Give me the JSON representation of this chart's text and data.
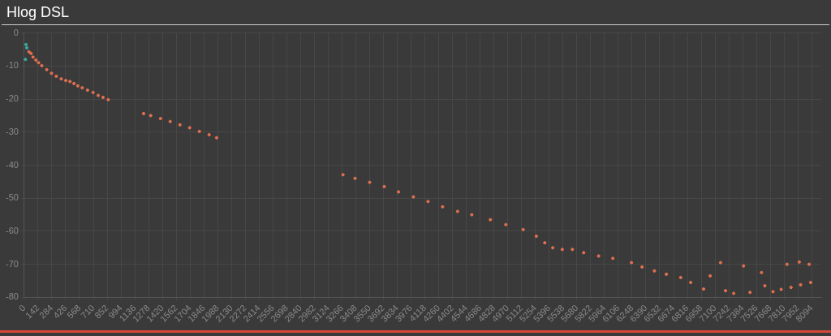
{
  "chart_data": {
    "type": "scatter",
    "title": "Hlog DSL",
    "series": [
      {
        "color": "#3aa89a",
        "x": [
          12,
          18,
          26
        ],
        "values": [
          -8,
          -3.5,
          -4.5
        ]
      },
      {
        "color": "#e07050",
        "x": [
          48,
          70,
          90,
          120,
          147,
          180,
          231,
          280,
          329,
          380,
          427,
          470,
          511,
          550,
          596,
          650,
          707,
          760,
          810,
          863,
          1227,
          1300,
          1400,
          1500,
          1600,
          1700,
          1800,
          1900,
          1977,
          3276,
          3400,
          3550,
          3700,
          3847,
          4000,
          4150,
          4300,
          4454,
          4600,
          4791,
          4950,
          5128,
          5263,
          5350,
          5432,
          5530,
          5634,
          5750,
          5904,
          6050,
          6241,
          6350,
          6477,
          6600,
          6747,
          6850,
          6983,
          7050,
          7157,
          7208,
          7292,
          7393,
          7460,
          7578,
          7612,
          7696,
          7780,
          7840,
          7881,
          7966,
          7980,
          8067,
          8083
        ],
        "values": [
          -5.7,
          -6.2,
          -7.3,
          -8.2,
          -9.0,
          -9.9,
          -11.1,
          -12.2,
          -13.1,
          -13.9,
          -14.4,
          -14.7,
          -15.3,
          -16.0,
          -16.6,
          -17.3,
          -18.0,
          -18.9,
          -19.5,
          -20.2,
          -24.4,
          -25.0,
          -25.9,
          -26.8,
          -27.8,
          -28.7,
          -29.8,
          -30.8,
          -31.7,
          -42.9,
          -44.0,
          -45.2,
          -46.5,
          -48.1,
          -49.6,
          -51.0,
          -52.6,
          -54.0,
          -55.0,
          -56.5,
          -58.0,
          -59.5,
          -61.5,
          -63.5,
          -65.0,
          -65.5,
          -65.5,
          -66.5,
          -67.5,
          -68.2,
          -69.5,
          -70.8,
          -72.0,
          -73.0,
          -74.0,
          -75.5,
          -77.5,
          -73.5,
          -69.5,
          -78,
          -78.8,
          -70.5,
          -78.5,
          -72.5,
          -76.5,
          -78.3,
          -77.6,
          -70,
          -77,
          -69.3,
          -76.2,
          -70,
          -75.5
        ]
      }
    ],
    "xlim": [
      0,
      8192
    ],
    "xticks": [
      0,
      142,
      284,
      426,
      568,
      710,
      852,
      994,
      1136,
      1278,
      1420,
      1562,
      1704,
      1846,
      1988,
      2130,
      2272,
      2414,
      2556,
      2698,
      2840,
      2982,
      3124,
      3266,
      3408,
      3550,
      3692,
      3834,
      3976,
      4118,
      4260,
      4402,
      4544,
      4686,
      4828,
      4970,
      5112,
      5254,
      5396,
      5538,
      5680,
      5822,
      5964,
      6106,
      6248,
      6390,
      6532,
      6674,
      6816,
      6958,
      7100,
      7242,
      7384,
      7526,
      7668,
      7810,
      7952,
      8094
    ],
    "ylim": [
      -80,
      0
    ],
    "yticks": [
      0,
      -10,
      -20,
      -30,
      -40,
      -50,
      -60,
      -70,
      -80
    ],
    "grid": true,
    "legend": false,
    "marker": "circle"
  }
}
